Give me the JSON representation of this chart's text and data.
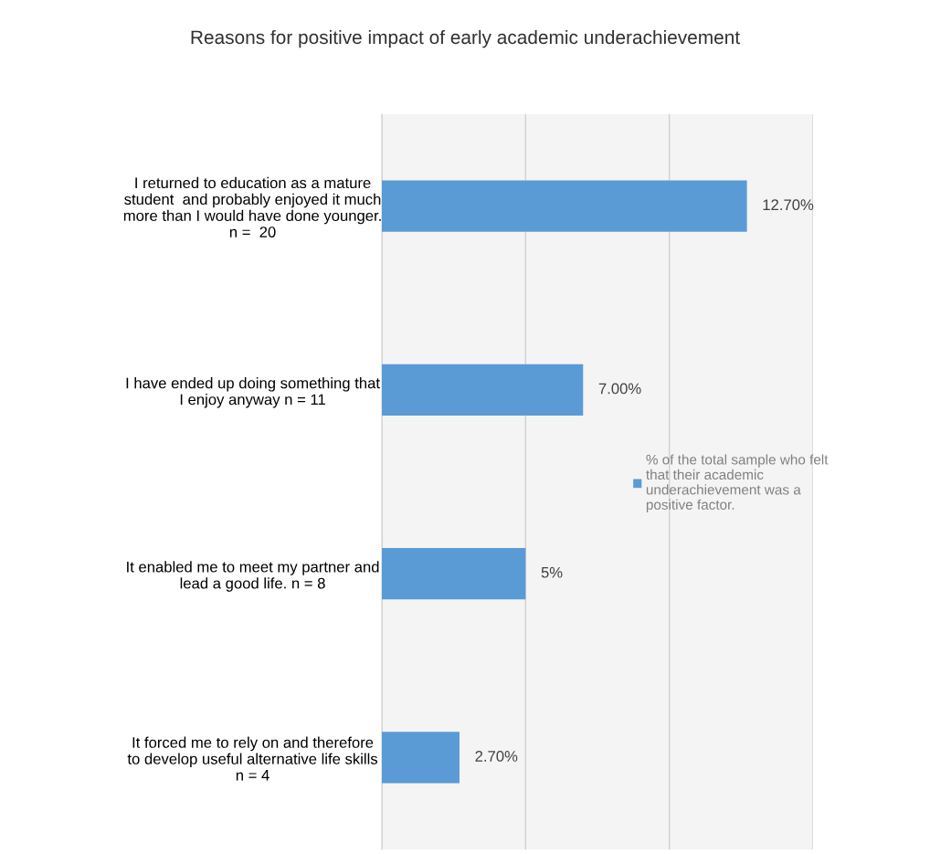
{
  "chart_data": {
    "type": "bar",
    "orientation": "horizontal",
    "title": "Reasons for positive impact of early academic underachievement",
    "categories": [
      "I returned to education as a mature\nstudent  and probably enjoyed it much\nmore than I would have done younger.\nn =  20",
      "I have ended up doing something that\nI enjoy anyway n = 11",
      "It enabled me to meet my partner and\nlead a good life. n = 8",
      "It forced me to rely on and therefore\nto develop useful alternative life skills\nn = 4"
    ],
    "series": [
      {
        "name": "% of the total sample who felt\nthat their academic\nunderachievement was a\npositive factor.",
        "color": "#5b9bd5",
        "values": [
          12.7,
          7.0,
          5,
          2.7
        ],
        "value_labels": [
          "12.70%",
          "7.00%",
          "5%",
          "2.70%"
        ]
      }
    ],
    "xlim": [
      0,
      15
    ],
    "xticks": [
      {
        "value": 0,
        "label": null
      },
      {
        "value": 5,
        "label": null
      },
      {
        "value": 10,
        "label": null
      },
      {
        "value": 15,
        "label": null
      }
    ],
    "tick_labels": "y",
    "grid": "x",
    "legend": "right"
  }
}
